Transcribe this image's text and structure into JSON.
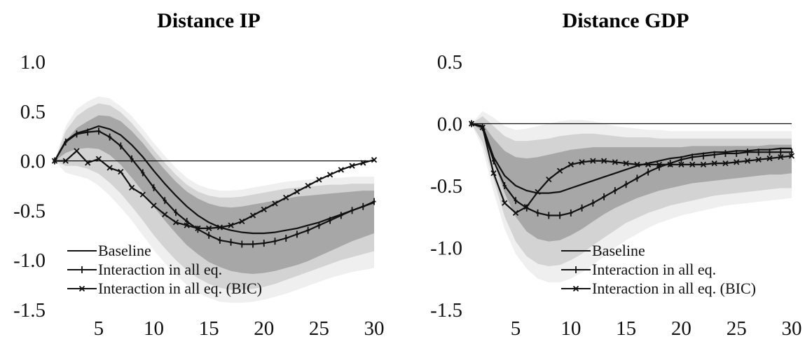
{
  "chart_data": [
    {
      "type": "line",
      "title": "Distance IP",
      "xlabel": "",
      "ylabel": "",
      "xlim": [
        1,
        30
      ],
      "ylim": [
        -1.5,
        1.0
      ],
      "xticks": [
        5,
        10,
        15,
        20,
        25,
        30
      ],
      "xtick_labels": [
        "5",
        "10",
        "15",
        "20",
        "25",
        "30"
      ],
      "yticks": [
        1.0,
        0.5,
        0.0,
        -0.5,
        -1.0,
        -1.5
      ],
      "ytick_labels": [
        "1.0",
        "0.5",
        "0.0",
        "-0.5",
        "-1.0",
        "-1.5"
      ],
      "zero_line": true,
      "grid": false,
      "legend_position": "bottom-left",
      "colors": {
        "band_outer": "#efefef",
        "band_mid": "#d3d3d3",
        "band_inner": "#a7a7a7",
        "line": "#111111"
      },
      "x": [
        1,
        2,
        3,
        4,
        5,
        6,
        7,
        8,
        9,
        10,
        11,
        12,
        13,
        14,
        15,
        16,
        17,
        18,
        19,
        20,
        21,
        22,
        23,
        24,
        25,
        26,
        27,
        28,
        29,
        30
      ],
      "bands": [
        {
          "level": "outer",
          "upper": [
            0.0,
            0.35,
            0.52,
            0.6,
            0.65,
            0.63,
            0.55,
            0.45,
            0.32,
            0.18,
            0.05,
            -0.07,
            -0.17,
            -0.24,
            -0.28,
            -0.3,
            -0.3,
            -0.29,
            -0.27,
            -0.25,
            -0.23,
            -0.21,
            -0.2,
            -0.19,
            -0.18,
            -0.17,
            -0.17,
            -0.16,
            -0.16,
            -0.16
          ],
          "lower": [
            0.0,
            -0.12,
            -0.15,
            -0.18,
            -0.25,
            -0.35,
            -0.47,
            -0.6,
            -0.75,
            -0.9,
            -1.03,
            -1.15,
            -1.25,
            -1.33,
            -1.38,
            -1.42,
            -1.43,
            -1.43,
            -1.42,
            -1.4,
            -1.37,
            -1.34,
            -1.3,
            -1.26,
            -1.22,
            -1.18,
            -1.15,
            -1.12,
            -1.1,
            -1.08
          ]
        },
        {
          "level": "mid",
          "upper": [
            0.0,
            0.3,
            0.45,
            0.53,
            0.58,
            0.56,
            0.49,
            0.38,
            0.25,
            0.11,
            -0.02,
            -0.14,
            -0.24,
            -0.31,
            -0.35,
            -0.37,
            -0.37,
            -0.36,
            -0.34,
            -0.32,
            -0.3,
            -0.28,
            -0.27,
            -0.26,
            -0.25,
            -0.24,
            -0.24,
            -0.23,
            -0.23,
            -0.23
          ],
          "lower": [
            0.0,
            -0.05,
            -0.05,
            -0.08,
            -0.13,
            -0.22,
            -0.33,
            -0.46,
            -0.6,
            -0.75,
            -0.88,
            -1.0,
            -1.1,
            -1.18,
            -1.24,
            -1.28,
            -1.3,
            -1.3,
            -1.29,
            -1.27,
            -1.24,
            -1.2,
            -1.16,
            -1.12,
            -1.08,
            -1.04,
            -1.0,
            -0.97,
            -0.94,
            -0.91
          ]
        },
        {
          "level": "inner",
          "upper": [
            0.0,
            0.2,
            0.33,
            0.4,
            0.46,
            0.45,
            0.4,
            0.3,
            0.18,
            0.04,
            -0.09,
            -0.21,
            -0.31,
            -0.38,
            -0.43,
            -0.46,
            -0.47,
            -0.46,
            -0.44,
            -0.42,
            -0.4,
            -0.38,
            -0.36,
            -0.35,
            -0.34,
            -0.33,
            -0.32,
            -0.31,
            -0.3,
            -0.3
          ],
          "lower": [
            0.0,
            0.08,
            0.12,
            0.13,
            0.12,
            0.06,
            -0.04,
            -0.17,
            -0.31,
            -0.46,
            -0.6,
            -0.73,
            -0.85,
            -0.94,
            -1.02,
            -1.07,
            -1.11,
            -1.13,
            -1.14,
            -1.13,
            -1.11,
            -1.08,
            -1.05,
            -1.01,
            -0.96,
            -0.91,
            -0.86,
            -0.81,
            -0.77,
            -0.73
          ]
        }
      ],
      "series": [
        {
          "name": "Baseline",
          "marker": "none",
          "values": [
            0.0,
            0.2,
            0.28,
            0.31,
            0.35,
            0.32,
            0.26,
            0.16,
            0.04,
            -0.1,
            -0.23,
            -0.35,
            -0.46,
            -0.55,
            -0.62,
            -0.67,
            -0.7,
            -0.72,
            -0.73,
            -0.73,
            -0.72,
            -0.7,
            -0.68,
            -0.65,
            -0.62,
            -0.58,
            -0.54,
            -0.5,
            -0.46,
            -0.42
          ]
        },
        {
          "name": "Interaction in all eq.",
          "marker": "plus",
          "values": [
            0.0,
            0.19,
            0.27,
            0.29,
            0.3,
            0.24,
            0.15,
            0.02,
            -0.12,
            -0.27,
            -0.4,
            -0.52,
            -0.61,
            -0.69,
            -0.75,
            -0.8,
            -0.82,
            -0.84,
            -0.84,
            -0.83,
            -0.81,
            -0.78,
            -0.74,
            -0.7,
            -0.65,
            -0.6,
            -0.55,
            -0.5,
            -0.46,
            -0.41
          ]
        },
        {
          "name": "Interaction in all eq. (BIC)",
          "marker": "x",
          "values": [
            0.0,
            0.0,
            0.1,
            -0.02,
            0.02,
            -0.07,
            -0.11,
            -0.27,
            -0.34,
            -0.45,
            -0.54,
            -0.62,
            -0.65,
            -0.68,
            -0.68,
            -0.67,
            -0.65,
            -0.61,
            -0.55,
            -0.49,
            -0.43,
            -0.37,
            -0.31,
            -0.25,
            -0.19,
            -0.14,
            -0.09,
            -0.05,
            -0.02,
            0.01
          ]
        }
      ]
    },
    {
      "type": "line",
      "title": "Distance GDP",
      "xlabel": "",
      "ylabel": "",
      "xlim": [
        1,
        30
      ],
      "ylim": [
        -1.5,
        0.5
      ],
      "xticks": [
        5,
        10,
        15,
        20,
        25,
        30
      ],
      "xtick_labels": [
        "5",
        "10",
        "15",
        "20",
        "25",
        "30"
      ],
      "yticks": [
        0.5,
        0.0,
        -0.5,
        -1.0,
        -1.5
      ],
      "ytick_labels": [
        "0.5",
        "0.0",
        "-0.5",
        "-1.0",
        "-1.5"
      ],
      "zero_line": true,
      "grid": false,
      "legend_position": "bottom-right",
      "colors": {
        "band_outer": "#efefef",
        "band_mid": "#d3d3d3",
        "band_inner": "#a7a7a7",
        "line": "#111111"
      },
      "x": [
        1,
        2,
        3,
        4,
        5,
        6,
        7,
        8,
        9,
        10,
        11,
        12,
        13,
        14,
        15,
        16,
        17,
        18,
        19,
        20,
        21,
        22,
        23,
        24,
        25,
        26,
        27,
        28,
        29,
        30
      ],
      "bands": [
        {
          "level": "outer",
          "upper": [
            0.0,
            0.1,
            0.05,
            -0.02,
            -0.05,
            -0.04,
            -0.02,
            0.0,
            0.02,
            0.03,
            0.03,
            0.02,
            0.0,
            -0.02,
            -0.03,
            -0.04,
            -0.05,
            -0.05,
            -0.06,
            -0.06,
            -0.06,
            -0.06,
            -0.06,
            -0.06,
            -0.06,
            -0.06,
            -0.06,
            -0.06,
            -0.06,
            -0.06
          ],
          "lower": [
            0.0,
            -0.2,
            -0.55,
            -0.85,
            -1.05,
            -1.17,
            -1.25,
            -1.28,
            -1.28,
            -1.25,
            -1.2,
            -1.14,
            -1.07,
            -1.0,
            -0.94,
            -0.89,
            -0.84,
            -0.8,
            -0.77,
            -0.74,
            -0.72,
            -0.7,
            -0.68,
            -0.66,
            -0.65,
            -0.64,
            -0.63,
            -0.62,
            -0.61,
            -0.6
          ]
        },
        {
          "level": "mid",
          "upper": [
            0.0,
            0.06,
            -0.02,
            -0.1,
            -0.14,
            -0.14,
            -0.13,
            -0.12,
            -0.1,
            -0.09,
            -0.08,
            -0.08,
            -0.09,
            -0.1,
            -0.11,
            -0.11,
            -0.11,
            -0.12,
            -0.12,
            -0.12,
            -0.12,
            -0.12,
            -0.12,
            -0.12,
            -0.12,
            -0.12,
            -0.12,
            -0.12,
            -0.12,
            -0.12
          ],
          "lower": [
            0.0,
            -0.15,
            -0.45,
            -0.75,
            -0.95,
            -1.07,
            -1.13,
            -1.15,
            -1.14,
            -1.1,
            -1.05,
            -0.98,
            -0.92,
            -0.86,
            -0.8,
            -0.76,
            -0.72,
            -0.69,
            -0.66,
            -0.64,
            -0.62,
            -0.6,
            -0.58,
            -0.57,
            -0.56,
            -0.55,
            -0.54,
            -0.53,
            -0.52,
            -0.52
          ]
        },
        {
          "level": "inner",
          "upper": [
            0.0,
            0.0,
            -0.12,
            -0.22,
            -0.27,
            -0.28,
            -0.27,
            -0.25,
            -0.23,
            -0.21,
            -0.2,
            -0.19,
            -0.19,
            -0.19,
            -0.19,
            -0.19,
            -0.19,
            -0.19,
            -0.19,
            -0.19,
            -0.18,
            -0.18,
            -0.18,
            -0.18,
            -0.18,
            -0.18,
            -0.18,
            -0.17,
            -0.17,
            -0.17
          ],
          "lower": [
            0.0,
            -0.06,
            -0.3,
            -0.56,
            -0.75,
            -0.87,
            -0.93,
            -0.95,
            -0.94,
            -0.9,
            -0.85,
            -0.79,
            -0.73,
            -0.68,
            -0.64,
            -0.6,
            -0.57,
            -0.54,
            -0.52,
            -0.5,
            -0.48,
            -0.47,
            -0.46,
            -0.45,
            -0.44,
            -0.43,
            -0.42,
            -0.41,
            -0.41,
            -0.4
          ]
        }
      ],
      "series": [
        {
          "name": "Baseline",
          "marker": "none",
          "values": [
            0.0,
            -0.02,
            -0.27,
            -0.42,
            -0.5,
            -0.54,
            -0.56,
            -0.56,
            -0.55,
            -0.52,
            -0.49,
            -0.46,
            -0.43,
            -0.4,
            -0.37,
            -0.34,
            -0.32,
            -0.3,
            -0.28,
            -0.27,
            -0.25,
            -0.24,
            -0.23,
            -0.23,
            -0.22,
            -0.22,
            -0.21,
            -0.21,
            -0.2,
            -0.2
          ]
        },
        {
          "name": "Interaction in all eq.",
          "marker": "plus",
          "values": [
            0.0,
            -0.03,
            -0.3,
            -0.5,
            -0.62,
            -0.68,
            -0.72,
            -0.74,
            -0.74,
            -0.72,
            -0.68,
            -0.64,
            -0.59,
            -0.54,
            -0.49,
            -0.44,
            -0.39,
            -0.35,
            -0.32,
            -0.29,
            -0.27,
            -0.26,
            -0.25,
            -0.24,
            -0.24,
            -0.23,
            -0.23,
            -0.23,
            -0.23,
            -0.23
          ]
        },
        {
          "name": "Interaction in all eq. (BIC)",
          "marker": "x",
          "values": [
            0.0,
            -0.03,
            -0.4,
            -0.64,
            -0.72,
            -0.67,
            -0.55,
            -0.45,
            -0.38,
            -0.33,
            -0.31,
            -0.3,
            -0.3,
            -0.31,
            -0.32,
            -0.33,
            -0.33,
            -0.33,
            -0.33,
            -0.33,
            -0.33,
            -0.33,
            -0.32,
            -0.32,
            -0.31,
            -0.3,
            -0.29,
            -0.28,
            -0.27,
            -0.26
          ]
        }
      ]
    }
  ]
}
